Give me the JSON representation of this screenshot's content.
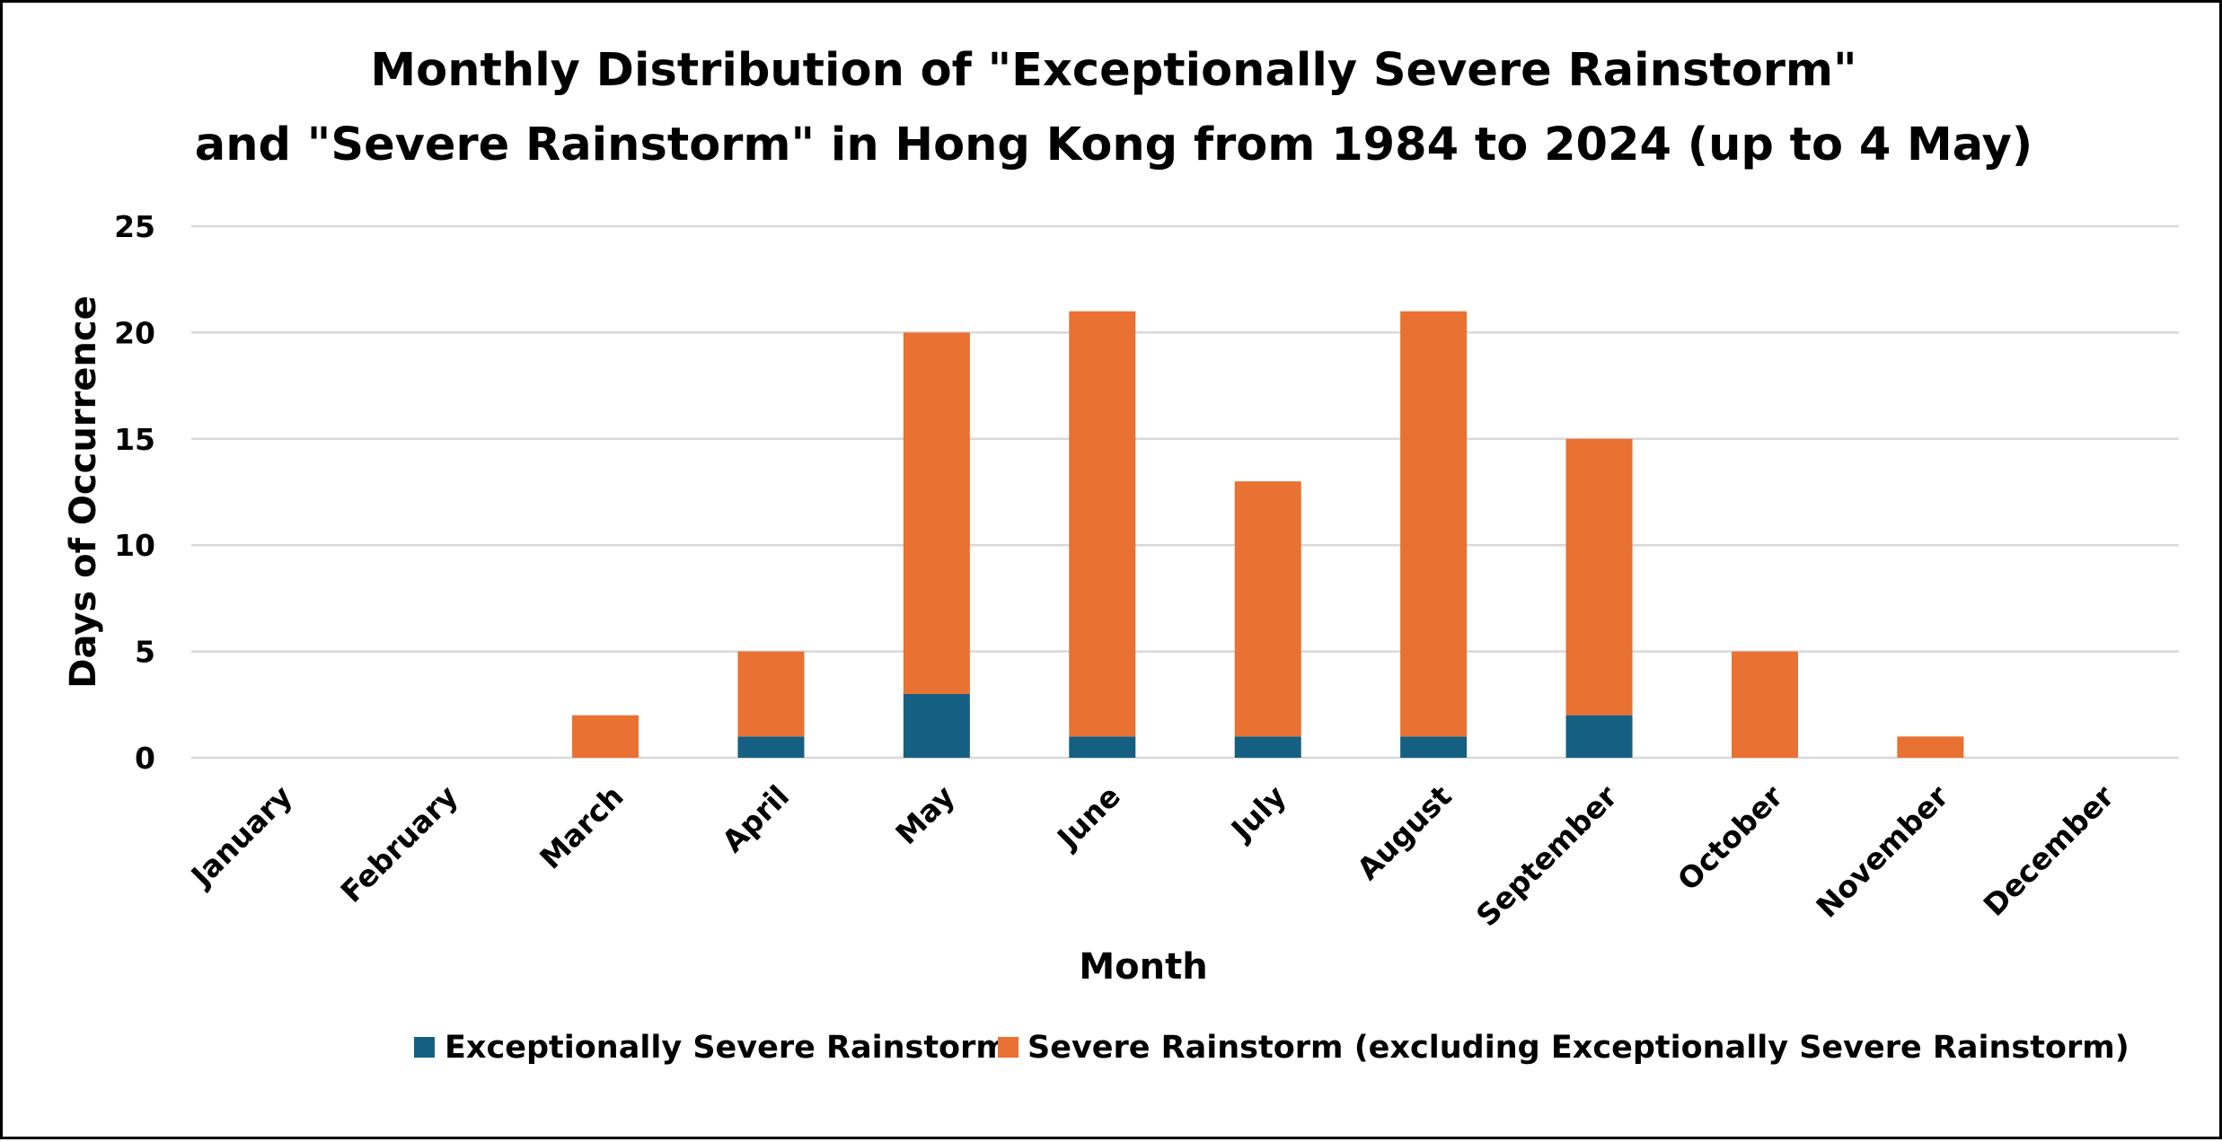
{
  "chart_data": {
    "type": "bar",
    "stacked": true,
    "title": "Monthly Distribution of \"Exceptionally Severe Rainstorm\"",
    "title_line2": "and \"Severe Rainstorm\" in Hong Kong from 1984 to 2024 (up to 4 May)",
    "xlabel": "Month",
    "ylabel": "Days of Occurrence",
    "ylim": [
      0,
      25
    ],
    "yticks": [
      0,
      5,
      10,
      15,
      20,
      25
    ],
    "grid": true,
    "legend_position": "bottom",
    "categories": [
      "January",
      "February",
      "March",
      "April",
      "May",
      "June",
      "July",
      "August",
      "September",
      "October",
      "November",
      "December"
    ],
    "series": [
      {
        "name": "Exceptionally Severe Rainstorm",
        "color": "#156082",
        "values": [
          0,
          0,
          0,
          1,
          3,
          1,
          1,
          1,
          2,
          0,
          0,
          0
        ]
      },
      {
        "name": "Severe Rainstorm (excluding Exceptionally Severe Rainstorm)",
        "color": "#e97132",
        "values": [
          0,
          0,
          2,
          4,
          17,
          20,
          12,
          20,
          13,
          5,
          1,
          0
        ]
      }
    ]
  }
}
